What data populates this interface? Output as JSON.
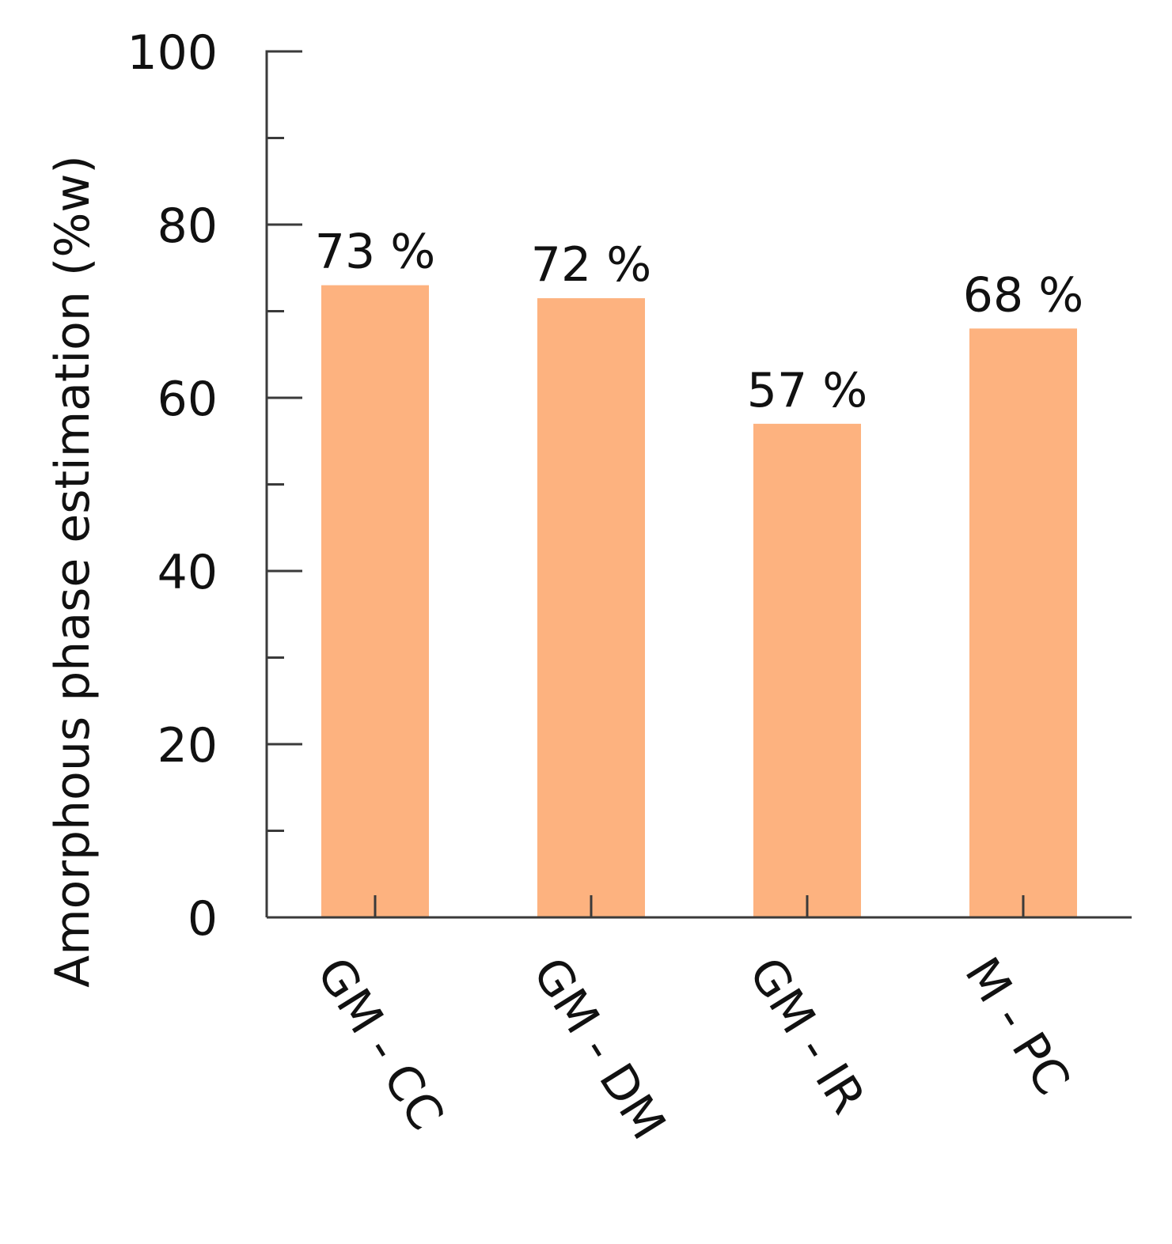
{
  "chart_data": {
    "type": "bar",
    "categories": [
      "GM - CC",
      "GM - DM",
      "GM - IR",
      "M - PC"
    ],
    "values": [
      73,
      71.5,
      57,
      68
    ],
    "data_labels": [
      "73 %",
      "72 %",
      "57 %",
      "68 %"
    ],
    "title": "",
    "xlabel": "",
    "ylabel": "Amorphous phase estimation (%w)",
    "ylim": [
      0,
      100
    ],
    "yticks": [
      0,
      20,
      40,
      60,
      80,
      100
    ],
    "y_minor_step": 10,
    "grid": false,
    "legend": "none",
    "bar_color": "#fdb27f",
    "axis_color": "#3a3a3a",
    "text_color": "#111111"
  }
}
